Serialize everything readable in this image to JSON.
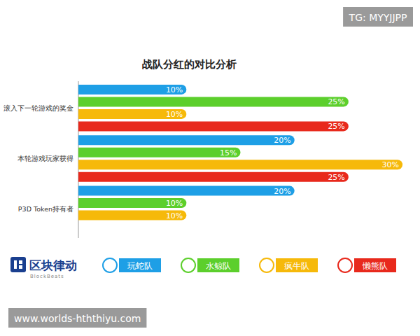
{
  "chart_data": {
    "type": "bar",
    "title": "战队分红的对比分析",
    "orientation": "horizontal",
    "categories": [
      "滚入下一轮游戏的奖金",
      "本轮游戏玩家获得",
      "P3D Token持有者"
    ],
    "series": [
      {
        "name": "玩蛇队",
        "color": "#1e9fe6",
        "values": [
          10,
          20,
          20
        ],
        "value_labels": [
          "10%",
          "20%",
          "20%"
        ]
      },
      {
        "name": "水鲸队",
        "color": "#5ccf2c",
        "values": [
          25,
          15,
          10
        ],
        "value_labels": [
          "25%",
          "15%",
          "10%"
        ]
      },
      {
        "name": "疯牛队",
        "color": "#f6b90a",
        "values": [
          10,
          30,
          10
        ],
        "value_labels": [
          "10%",
          "30%",
          "10%"
        ]
      },
      {
        "name": "懒熊队",
        "color": "#e8291c",
        "values": [
          25,
          25,
          null
        ],
        "value_labels": [
          "25%",
          "25%",
          null
        ]
      }
    ],
    "xlim": [
      0,
      30
    ],
    "data_labels": true,
    "tick_labels": "y",
    "legend": "bottom",
    "annotations": [
      "区块律动",
      "BlockBeats",
      "TG: MYYJJPP",
      "www.worlds-hththiyu.com"
    ]
  }
}
